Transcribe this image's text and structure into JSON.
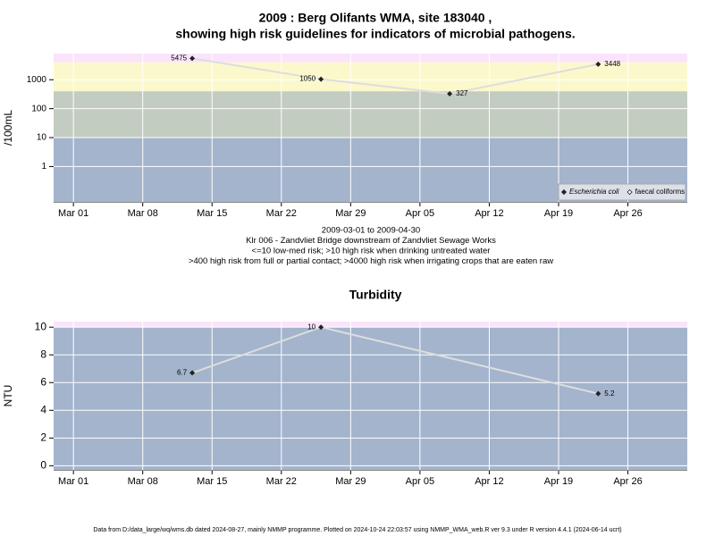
{
  "chart_data": [
    {
      "type": "line",
      "title": [
        "2009 : Berg Olifants WMA, site 183040 ,",
        "showing high risk guidelines for indicators of microbial pathogens."
      ],
      "y_label": "/100mL",
      "log_scale": true,
      "x": [
        "2009-03-13",
        "2009-03-26",
        "2009-04-08",
        "2009-04-23"
      ],
      "series": [
        {
          "name": "Escherichia coli",
          "color": "#222222",
          "values": [
            5475,
            1050,
            327,
            3448
          ]
        },
        {
          "name": "faecal coliforms",
          "color": "#222222",
          "values": [
            null,
            null,
            null,
            null
          ]
        }
      ],
      "line_color": "#dddddd",
      "xlim": [
        "2009-02-27",
        "2009-05-02"
      ],
      "xticks": [
        {
          "value": "2009-03-01",
          "label": "Mar 01"
        },
        {
          "value": "2009-03-08",
          "label": "Mar 08"
        },
        {
          "value": "2009-03-15",
          "label": "Mar 15"
        },
        {
          "value": "2009-03-22",
          "label": "Mar 22"
        },
        {
          "value": "2009-03-29",
          "label": "Mar 29"
        },
        {
          "value": "2009-04-05",
          "label": "Apr 05"
        },
        {
          "value": "2009-04-12",
          "label": "Apr 12"
        },
        {
          "value": "2009-04-19",
          "label": "Apr 19"
        },
        {
          "value": "2009-04-26",
          "label": "Apr 26"
        }
      ],
      "ylim": [
        0.06,
        8000
      ],
      "yticks": [
        1,
        10,
        100,
        1000
      ],
      "thresholds": [
        10,
        400,
        4000
      ],
      "band_colors": [
        "#a3b4cc",
        "#c3ccc0",
        "#fbf8cc",
        "#fbe4fb"
      ],
      "grid": true,
      "legend": "bottom-right",
      "caption": [
        "2009-03-01 to 2009-04-30",
        "Klr 006 - Zandvliet Bridge downstream of Zandvliet Sewage Works",
        "<=10 low-med risk; >10 high risk when drinking untreated water",
        ">400 high risk from full or partial contact; >4000 high risk when irrigating crops that are eaten raw"
      ]
    },
    {
      "type": "line",
      "title": [
        "Turbidity"
      ],
      "y_label": "NTU",
      "log_scale": false,
      "x": [
        "2009-03-13",
        "2009-03-26",
        "2009-04-23"
      ],
      "series": [
        {
          "name": "Turbidity",
          "color": "#222222",
          "values": [
            6.7,
            10,
            5.2
          ]
        }
      ],
      "line_color": "#dddddd",
      "xlim": [
        "2009-02-27",
        "2009-05-02"
      ],
      "xticks": [
        {
          "value": "2009-03-01",
          "label": "Mar 01"
        },
        {
          "value": "2009-03-08",
          "label": "Mar 08"
        },
        {
          "value": "2009-03-15",
          "label": "Mar 15"
        },
        {
          "value": "2009-03-22",
          "label": "Mar 22"
        },
        {
          "value": "2009-03-29",
          "label": "Mar 29"
        },
        {
          "value": "2009-04-05",
          "label": "Apr 05"
        },
        {
          "value": "2009-04-12",
          "label": "Apr 12"
        },
        {
          "value": "2009-04-19",
          "label": "Apr 19"
        },
        {
          "value": "2009-04-26",
          "label": "Apr 26"
        }
      ],
      "ylim": [
        -0.3,
        10.4
      ],
      "yticks": [
        0,
        2,
        4,
        6,
        8,
        10
      ],
      "thresholds": [
        10
      ],
      "band_colors": [
        "#a3b4cc",
        "#fbe4fb"
      ],
      "grid": true
    }
  ],
  "footer": "Data from D:/data_large/wq/wms.db dated 2024-08-27, mainly NMMP programme. Plotted on 2024-10-24 22:03:57 using NMMP_WMA_web.R ver 9.3 under R version 4.4.1 (2024-06-14 ucrt)"
}
